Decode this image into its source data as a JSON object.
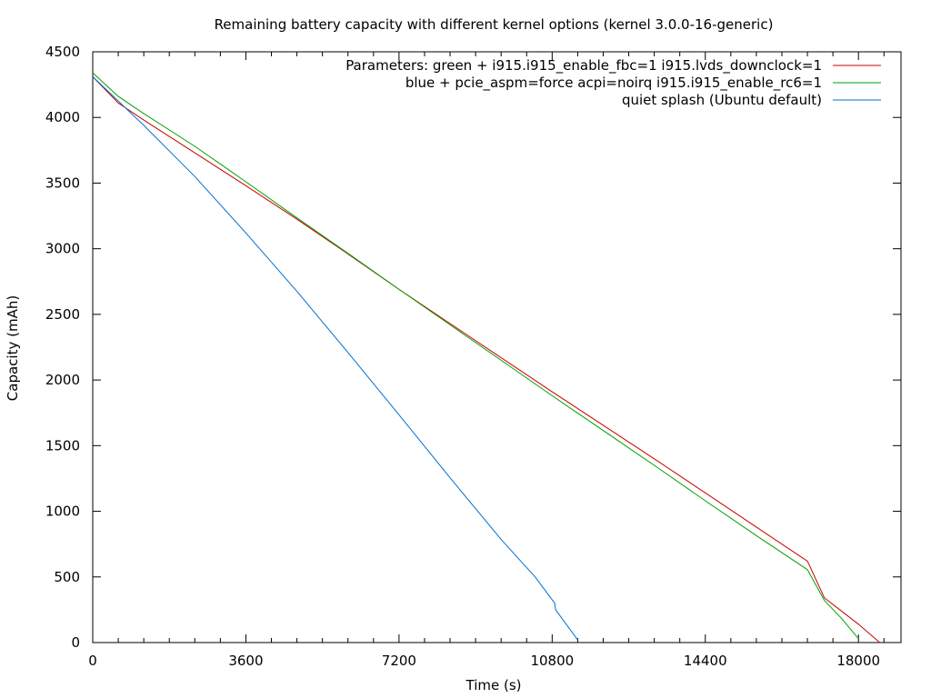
{
  "chart_data": {
    "type": "line",
    "title": "Remaining battery capacity with different kernel options (kernel 3.0.0-16-generic)",
    "xlabel": "Time (s)",
    "ylabel": "Capacity (mAh)",
    "xlim": [
      0,
      19000
    ],
    "ylim": [
      0,
      4500
    ],
    "xticks": [
      0,
      3600,
      7200,
      10800,
      14400,
      18000
    ],
    "yticks": [
      0,
      500,
      1000,
      1500,
      2000,
      2500,
      3000,
      3500,
      4000,
      4500
    ],
    "xtick_labels": [
      "0",
      "3600",
      "7200",
      "10800",
      "14400",
      "18000"
    ],
    "ytick_labels": [
      "0",
      "500",
      "1000",
      "1500",
      "2000",
      "2500",
      "3000",
      "3500",
      "4000",
      "4500"
    ],
    "grid": false,
    "legend_position": "top-right",
    "series": [
      {
        "name": "Parameters: green + i915.i915_enable_fbc=1 i915.lvds_downclock=1",
        "color": "#cc0000",
        "x": [
          0,
          600,
          1200,
          2400,
          3600,
          4800,
          6000,
          7200,
          8400,
          9600,
          10800,
          12000,
          13200,
          14400,
          15600,
          16800,
          17200,
          17600,
          18000,
          18500
        ],
        "y": [
          4310,
          4110,
          3980,
          3730,
          3480,
          3225,
          2960,
          2690,
          2430,
          2170,
          1910,
          1655,
          1400,
          1140,
          880,
          620,
          340,
          240,
          140,
          0
        ]
      },
      {
        "name": "blue + pcie_aspm=force acpi=noirq i915.i915_enable_rc6=1",
        "color": "#00a000",
        "x": [
          0,
          600,
          1200,
          2400,
          3600,
          4800,
          6000,
          7200,
          8400,
          9600,
          10800,
          12000,
          13200,
          14400,
          15600,
          16800,
          17200,
          17600,
          18000
        ],
        "y": [
          4340,
          4160,
          4030,
          3780,
          3510,
          3235,
          2965,
          2690,
          2420,
          2150,
          1880,
          1615,
          1350,
          1080,
          815,
          555,
          320,
          185,
          30
        ]
      },
      {
        "name": "quiet splash (Ubuntu default)",
        "color": "#0070d0",
        "x": [
          0,
          1200,
          2400,
          3600,
          4800,
          6000,
          7200,
          8400,
          9600,
          10400,
          10860,
          10880,
          11400
        ],
        "y": [
          4310,
          3940,
          3550,
          3120,
          2675,
          2210,
          1735,
          1255,
          785,
          500,
          300,
          250,
          20
        ]
      }
    ]
  }
}
